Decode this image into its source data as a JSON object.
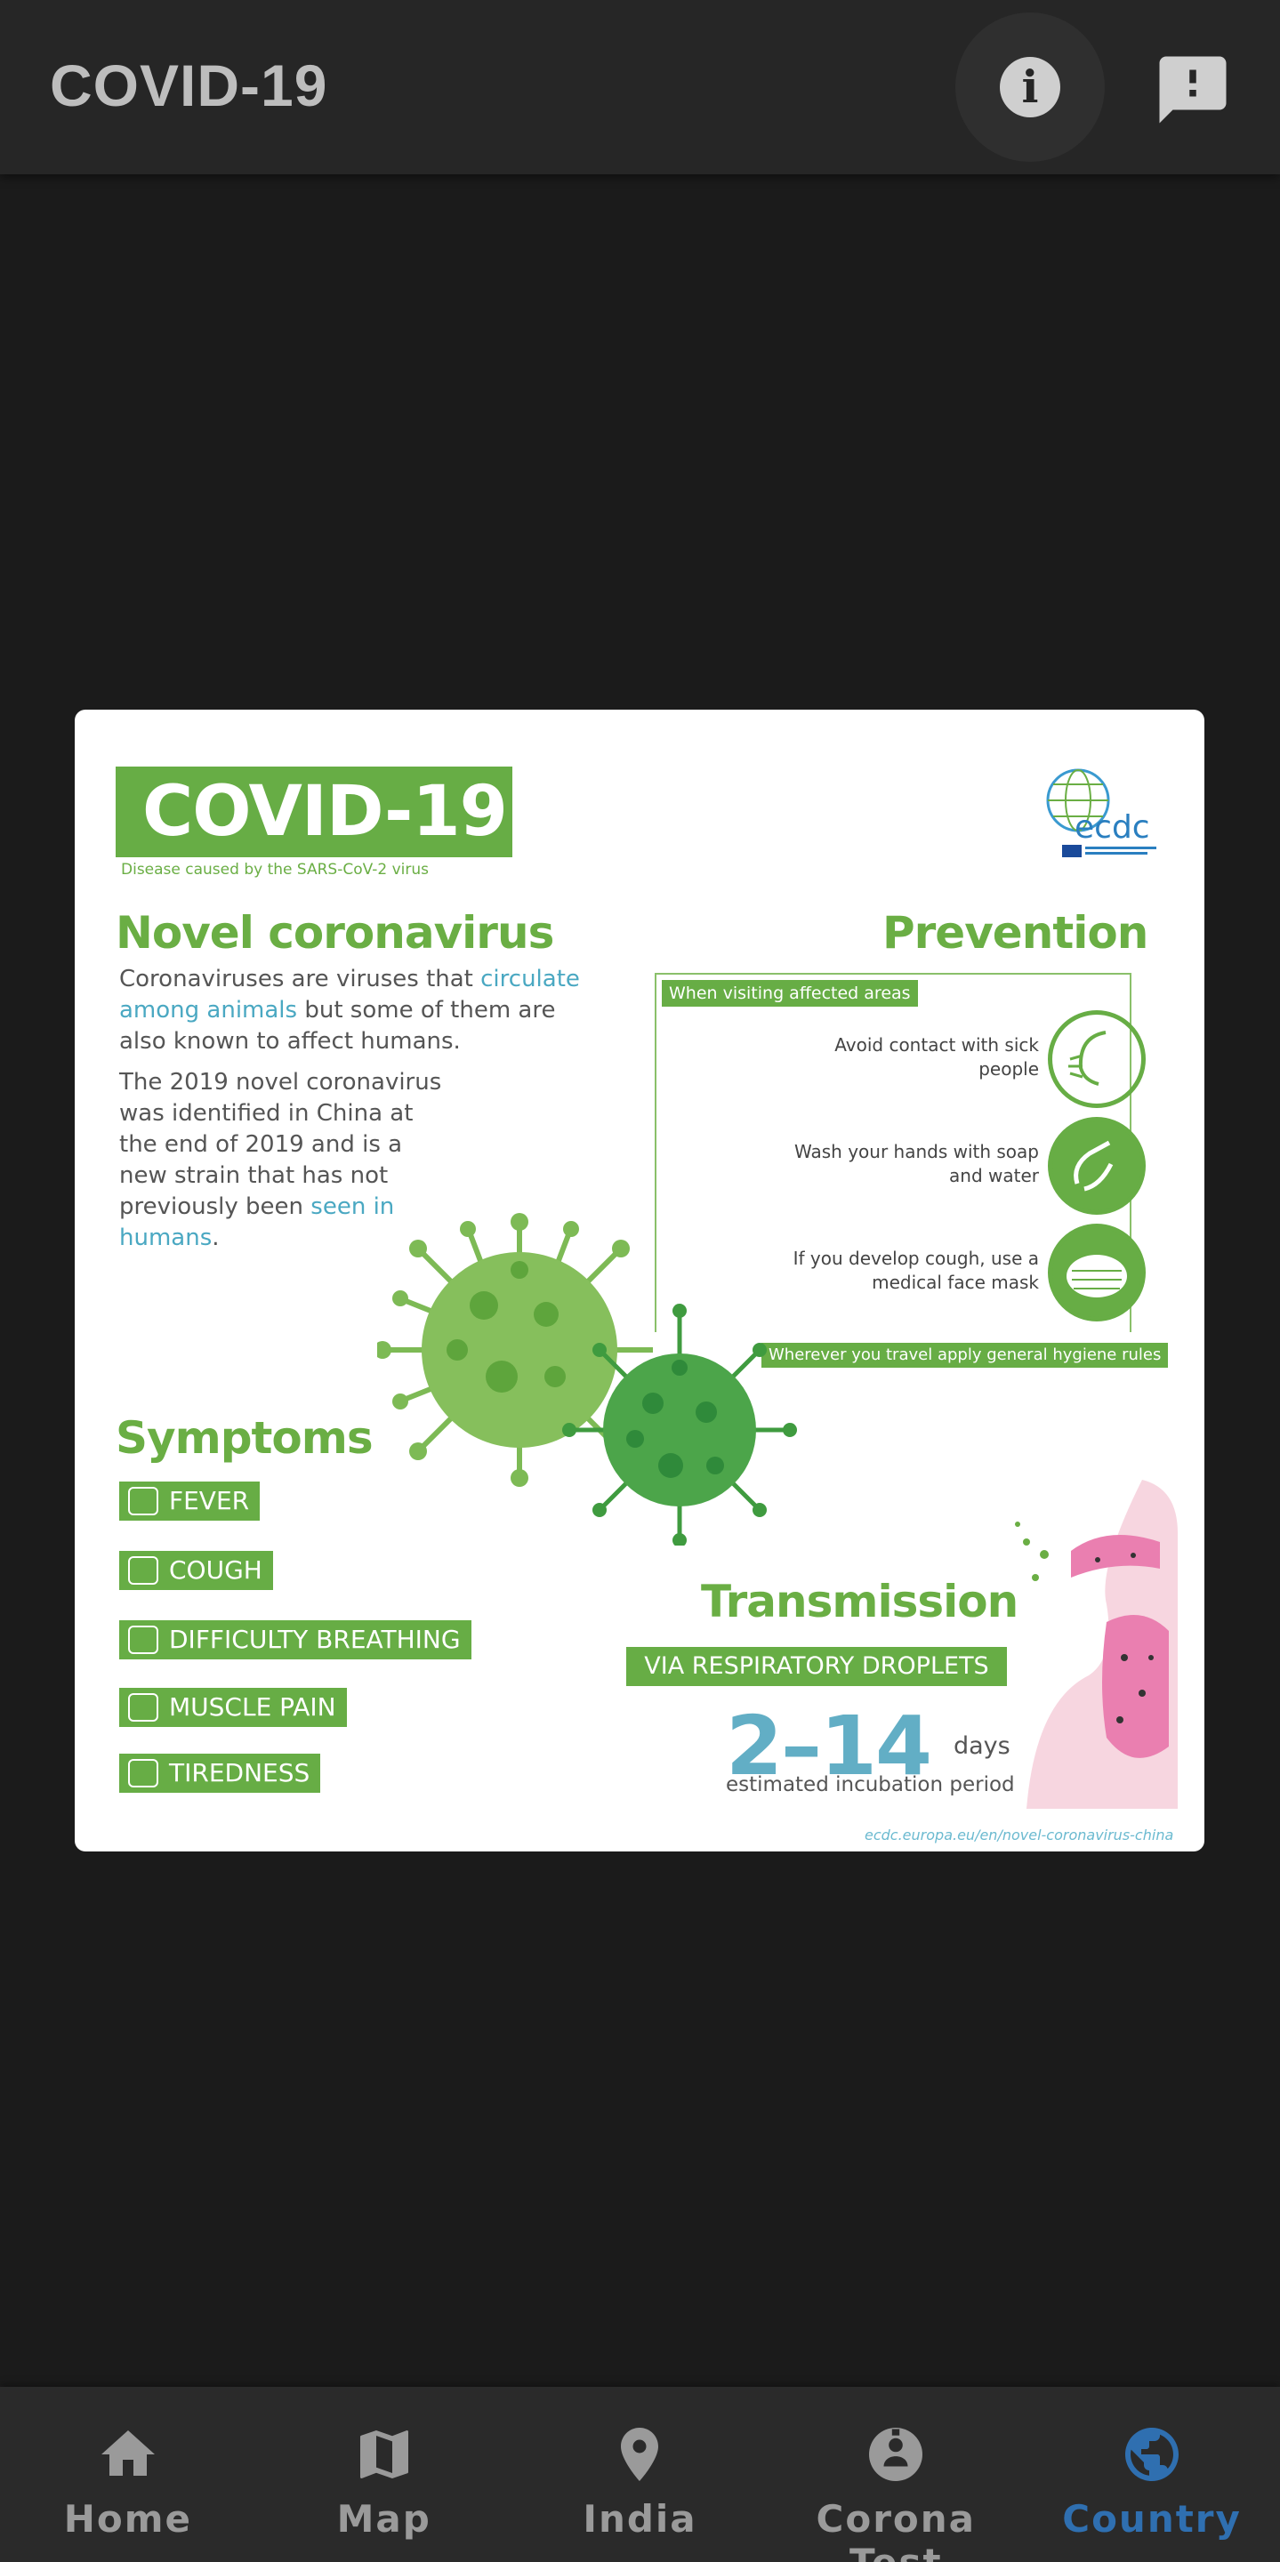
{
  "app": {
    "title": "COVID-19"
  },
  "toolbar": {
    "info_icon": "info-icon",
    "feedback_icon": "feedback-icon"
  },
  "colors": {
    "accent": "#2f6fb0",
    "appbar": "#262626",
    "background": "#1b1b1b",
    "infographic_green": "#67ad45",
    "infographic_teal": "#4aa8c2"
  },
  "infographic": {
    "title": "COVID-19",
    "subtitle": "Disease caused by the SARS-CoV-2 virus",
    "novel": {
      "heading": "Novel coronavirus",
      "p1_a": "Coronaviruses are viruses that ",
      "p1_b": "circulate among animals",
      "p1_c": " but some of them are also known to affect humans.",
      "p2_a": "The 2019 novel coronavirus was identified in China at the end of 2019 and is a new strain that has not previously been ",
      "p2_b": "seen in humans",
      "p2_c": "."
    },
    "prevention": {
      "heading": "Prevention",
      "strip_top": "When visiting affected areas",
      "items": [
        {
          "text": "Avoid contact with sick people",
          "icon": "face-icon"
        },
        {
          "text": "Wash your hands with soap and water",
          "icon": "handwash-icon"
        },
        {
          "text": "If you develop cough, use a medical face mask",
          "icon": "face-mask-icon"
        }
      ],
      "strip_bottom": "Wherever you travel apply general hygiene rules"
    },
    "symptoms": {
      "heading": "Symptoms",
      "items": [
        "FEVER",
        "COUGH",
        "DIFFICULTY BREATHING",
        "MUSCLE PAIN",
        "TIREDNESS"
      ]
    },
    "transmission": {
      "heading": "Transmission",
      "strip": "VIA RESPIRATORY DROPLETS",
      "range": "2–14",
      "unit": "days",
      "note": "estimated incubation period"
    },
    "source": "ecdc.europa.eu/en/novel-coronavirus-china",
    "logo_text": "ecdc"
  },
  "bottom_nav": {
    "items": [
      {
        "label": "Home",
        "icon": "home-icon",
        "active": false
      },
      {
        "label": "Map",
        "icon": "map-icon",
        "active": false
      },
      {
        "label": "India",
        "icon": "location-pin-icon",
        "active": false
      },
      {
        "label": "Corona Test",
        "icon": "account-badge-icon",
        "active": false
      },
      {
        "label": "Country",
        "icon": "globe-icon",
        "active": true
      }
    ]
  }
}
